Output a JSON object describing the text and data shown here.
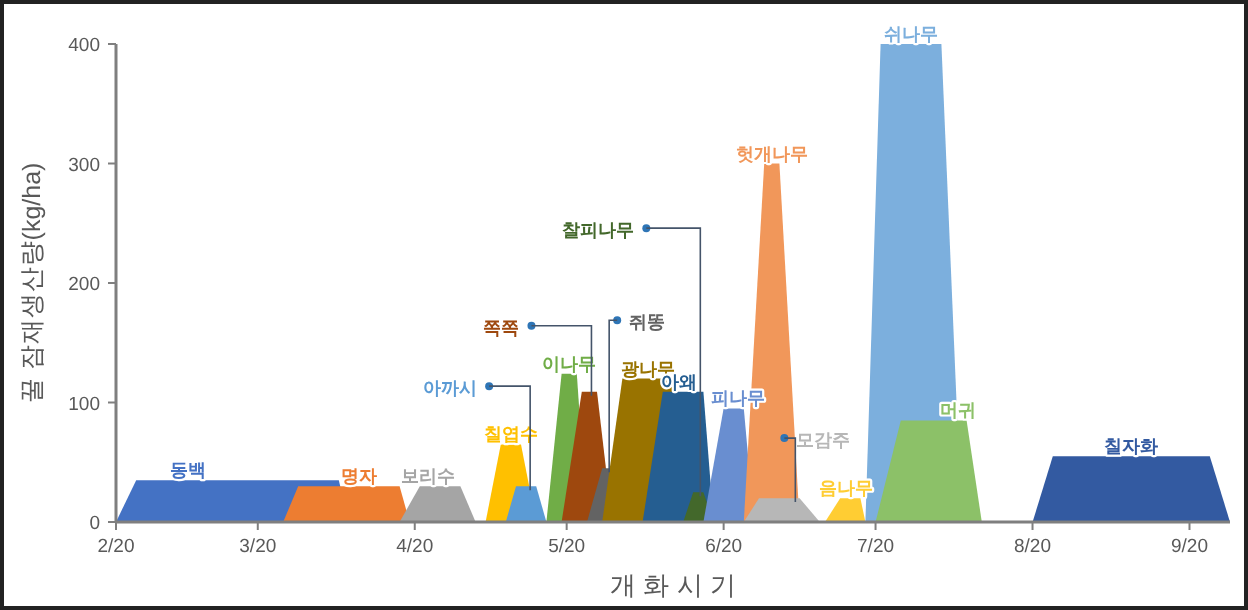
{
  "chart_data": {
    "type": "area",
    "xlabel": "개 화 시 기",
    "ylabel": "꿀 잠재생산량(kg/ha)",
    "xlim": [
      "--02-20",
      "--09-28"
    ],
    "ylim": [
      0,
      400
    ],
    "xticks": [
      {
        "value": "--02-20",
        "label": "2/20"
      },
      {
        "value": "--03-20",
        "label": "3/20"
      },
      {
        "value": "--04-20",
        "label": "4/20"
      },
      {
        "value": "--05-20",
        "label": "5/20"
      },
      {
        "value": "--06-20",
        "label": "6/20"
      },
      {
        "value": "--07-20",
        "label": "7/20"
      },
      {
        "value": "--08-20",
        "label": "8/20"
      },
      {
        "value": "--09-20",
        "label": "9/20"
      }
    ],
    "yticks": [
      0,
      100,
      200,
      300,
      400
    ],
    "grid": false,
    "series": [
      {
        "name": "동백",
        "color": "#4472c4",
        "x": [
          "--02-20",
          "--02-24",
          "--04-05",
          "--04-07"
        ],
        "values": [
          0,
          35,
          35,
          0
        ]
      },
      {
        "name": "명자",
        "color": "#ed7d31",
        "x": [
          "--03-25",
          "--03-28",
          "--04-17",
          "--04-19"
        ],
        "values": [
          0,
          30,
          30,
          0
        ]
      },
      {
        "name": "보리수",
        "color": "#a5a5a5",
        "x": [
          "--04-17",
          "--04-21",
          "--04-29",
          "--05-02"
        ],
        "values": [
          0,
          30,
          30,
          0
        ]
      },
      {
        "name": "칠엽수",
        "color": "#ffc000",
        "x": [
          "--05-04",
          "--05-07",
          "--05-11",
          "--05-14"
        ],
        "values": [
          0,
          65,
          65,
          0
        ]
      },
      {
        "name": "아까시",
        "color": "#5b9bd5",
        "x": [
          "--05-08",
          "--05-10",
          "--05-14",
          "--05-16"
        ],
        "values": [
          0,
          30,
          30,
          0
        ]
      },
      {
        "name": "이나무",
        "color": "#70ad47",
        "x": [
          "--05-16",
          "--05-19",
          "--05-22",
          "--05-24"
        ],
        "values": [
          0,
          124,
          124,
          0
        ]
      },
      {
        "name": "쪽쪽",
        "color": "#9e480e",
        "x": [
          "--05-19",
          "--05-23",
          "--05-26",
          "--05-29"
        ],
        "values": [
          0,
          109,
          109,
          0
        ]
      },
      {
        "name": "쥐똥",
        "color": "#636363",
        "x": [
          "--05-24",
          "--05-27",
          "--05-29",
          "--05-30"
        ],
        "values": [
          0,
          45,
          45,
          0
        ]
      },
      {
        "name": "광나무",
        "color": "#997300",
        "x": [
          "--05-27",
          "--05-31",
          "--06-10",
          "--06-13"
        ],
        "values": [
          0,
          120,
          120,
          0
        ]
      },
      {
        "name": "아왜",
        "color": "#255e91",
        "x": [
          "--06-04",
          "--06-08",
          "--06-16",
          "--06-18"
        ],
        "values": [
          0,
          109,
          109,
          0
        ]
      },
      {
        "name": "찰피나무",
        "color": "#43682b",
        "x": [
          "--06-12",
          "--06-14",
          "--06-16",
          "--06-18"
        ],
        "values": [
          0,
          25,
          25,
          0
        ]
      },
      {
        "name": "피나무",
        "color": "#698ed0",
        "x": [
          "--06-16",
          "--06-20",
          "--06-24",
          "--06-26"
        ],
        "values": [
          0,
          95,
          95,
          0
        ]
      },
      {
        "name": "헛개나무",
        "color": "#f1975a",
        "x": [
          "--06-24",
          "--06-28",
          "--07-01",
          "--07-05"
        ],
        "values": [
          0,
          300,
          300,
          0
        ]
      },
      {
        "name": "모감주",
        "color": "#b7b7b7",
        "x": [
          "--06-24",
          "--06-27",
          "--07-05",
          "--07-09"
        ],
        "values": [
          0,
          20,
          20,
          0
        ]
      },
      {
        "name": "음나무",
        "color": "#ffcd33",
        "x": [
          "--07-10",
          "--07-13",
          "--07-17",
          "--07-18"
        ],
        "values": [
          0,
          20,
          20,
          0
        ]
      },
      {
        "name": "쉬나무",
        "color": "#7cafdd",
        "x": [
          "--07-18",
          "--07-21",
          "--08-02",
          "--08-06"
        ],
        "values": [
          0,
          400,
          400,
          0
        ]
      },
      {
        "name": "머귀",
        "color": "#8cc168",
        "x": [
          "--07-20",
          "--07-25",
          "--08-07",
          "--08-10"
        ],
        "values": [
          0,
          85,
          85,
          0
        ]
      },
      {
        "name": "칠자화",
        "color": "#335aa1",
        "x": [
          "--08-20",
          "--08-24",
          "--09-24",
          "--09-28"
        ],
        "values": [
          0,
          55,
          55,
          0
        ]
      }
    ]
  }
}
